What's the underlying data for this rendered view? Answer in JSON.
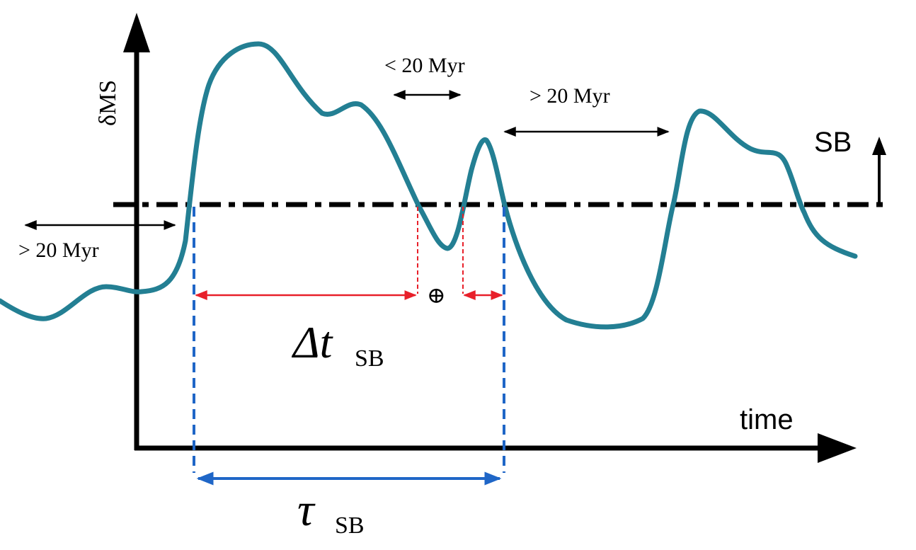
{
  "axes": {
    "y_label": "δMS",
    "x_label": "time"
  },
  "threshold": {
    "label": "SB"
  },
  "intervals": {
    "lower_left": "> 20 Myr",
    "middle_short": "< 20 Myr",
    "middle_long": "> 20 Myr"
  },
  "symbols": {
    "oplus": "⊕",
    "delta_t_main": "Δt",
    "delta_t_sub": "SB",
    "tau_main": "τ",
    "tau_sub": "SB"
  },
  "colors": {
    "curve": "#237f93",
    "red": "#e8202a",
    "blue": "#1f66c7",
    "black": "#000000"
  }
}
